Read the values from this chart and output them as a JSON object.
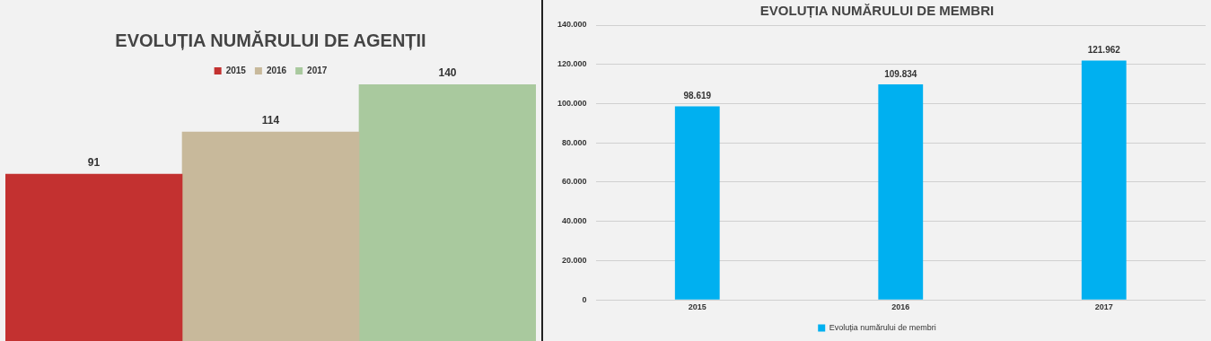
{
  "chart_data": [
    {
      "type": "bar",
      "title": "EVOLUȚIA NUMĂRULUI DE AGENȚII",
      "categories": [
        null
      ],
      "legend": "top",
      "data_labels": true,
      "series": [
        {
          "name": "2015",
          "color": "#c33130",
          "values": [
            91
          ]
        },
        {
          "name": "2016",
          "color": "#c8b99b",
          "values": [
            114
          ]
        },
        {
          "name": "2017",
          "color": "#a9c99e",
          "values": [
            140
          ]
        }
      ]
    },
    {
      "type": "bar",
      "title": "EVOLUȚIA NUMĂRULUI DE MEMBRI",
      "categories": [
        "2015",
        "2016",
        "2017"
      ],
      "legend": "bottom",
      "grid": "y",
      "ylim": [
        0,
        140000
      ],
      "yticks": [
        {
          "value": 0,
          "label": "0"
        },
        {
          "value": 20000,
          "label": "20.000"
        },
        {
          "value": 40000,
          "label": "40.000"
        },
        {
          "value": 60000,
          "label": "60.000"
        },
        {
          "value": 80000,
          "label": "80.000"
        },
        {
          "value": 100000,
          "label": "100.000"
        },
        {
          "value": 120000,
          "label": "120.000"
        },
        {
          "value": 140000,
          "label": "140.000"
        }
      ],
      "series": [
        {
          "name": "Evoluția numărului de membri",
          "color": "#00b0f0",
          "values": [
            98619,
            109834,
            121962
          ],
          "value_labels": [
            "98.619",
            "109.834",
            "121.962"
          ]
        }
      ]
    }
  ]
}
